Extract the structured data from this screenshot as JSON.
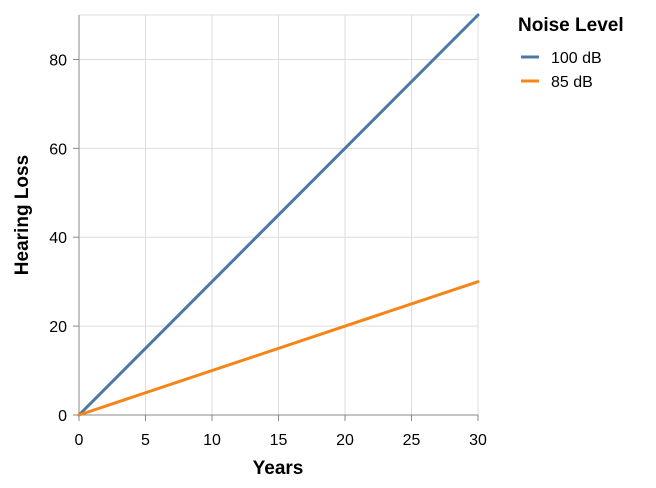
{
  "chart_data": {
    "type": "line",
    "xlabel": "Years",
    "ylabel": "Hearing Loss",
    "xlim": [
      0,
      30
    ],
    "ylim": [
      0,
      90
    ],
    "xticks": [
      0,
      5,
      10,
      15,
      20,
      25,
      30
    ],
    "yticks": [
      0,
      20,
      40,
      60,
      80
    ],
    "grid": true,
    "legend": {
      "title": "Noise Level",
      "placement": "right"
    },
    "series": [
      {
        "name": "100 dB",
        "color": "#4c78a8",
        "x": [
          0,
          30
        ],
        "y": [
          0,
          90
        ]
      },
      {
        "name": "85 dB",
        "color": "#f58518",
        "x": [
          0,
          30
        ],
        "y": [
          0,
          30
        ]
      }
    ]
  }
}
